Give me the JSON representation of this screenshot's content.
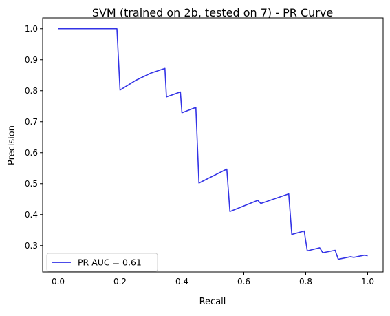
{
  "chart_data": {
    "type": "line",
    "title": "SVM (trained on 2b, tested on 7) -  PR Curve",
    "xlabel": "Recall",
    "ylabel": "Precision",
    "xlim": [
      -0.05,
      1.05
    ],
    "ylim": [
      0.215,
      1.035
    ],
    "xticks": [
      "0.0",
      "0.2",
      "0.4",
      "0.6",
      "0.8",
      "1.0"
    ],
    "yticks": [
      "0.3",
      "0.4",
      "0.5",
      "0.6",
      "0.7",
      "0.8",
      "0.9",
      "1.0"
    ],
    "grid": false,
    "legend_position": "lower-left",
    "series": [
      {
        "name": "PR AUC = 0.61",
        "color": "#3333e6",
        "points": [
          [
            0.0,
            1.0
          ],
          [
            0.19,
            1.0
          ],
          [
            0.2,
            0.802
          ],
          [
            0.25,
            0.833
          ],
          [
            0.3,
            0.857
          ],
          [
            0.345,
            0.872
          ],
          [
            0.35,
            0.78
          ],
          [
            0.395,
            0.796
          ],
          [
            0.4,
            0.729
          ],
          [
            0.445,
            0.746
          ],
          [
            0.455,
            0.502
          ],
          [
            0.545,
            0.547
          ],
          [
            0.555,
            0.41
          ],
          [
            0.645,
            0.446
          ],
          [
            0.655,
            0.436
          ],
          [
            0.745,
            0.467
          ],
          [
            0.755,
            0.336
          ],
          [
            0.795,
            0.347
          ],
          [
            0.805,
            0.283
          ],
          [
            0.845,
            0.293
          ],
          [
            0.855,
            0.277
          ],
          [
            0.895,
            0.285
          ],
          [
            0.905,
            0.256
          ],
          [
            0.945,
            0.264
          ],
          [
            0.955,
            0.262
          ],
          [
            0.99,
            0.269
          ],
          [
            1.0,
            0.267
          ]
        ]
      }
    ]
  }
}
